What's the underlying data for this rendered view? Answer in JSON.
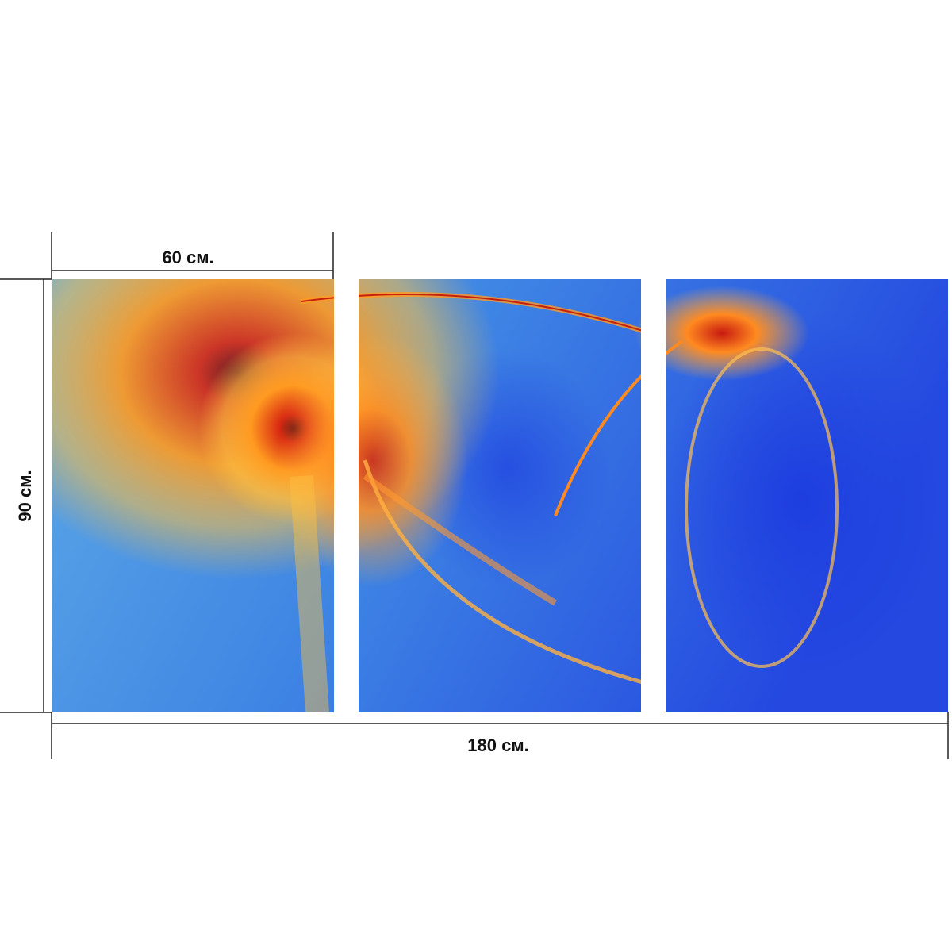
{
  "dimensions": {
    "panel_width": "60 см.",
    "height": "90 см.",
    "total_width": "180 см."
  }
}
